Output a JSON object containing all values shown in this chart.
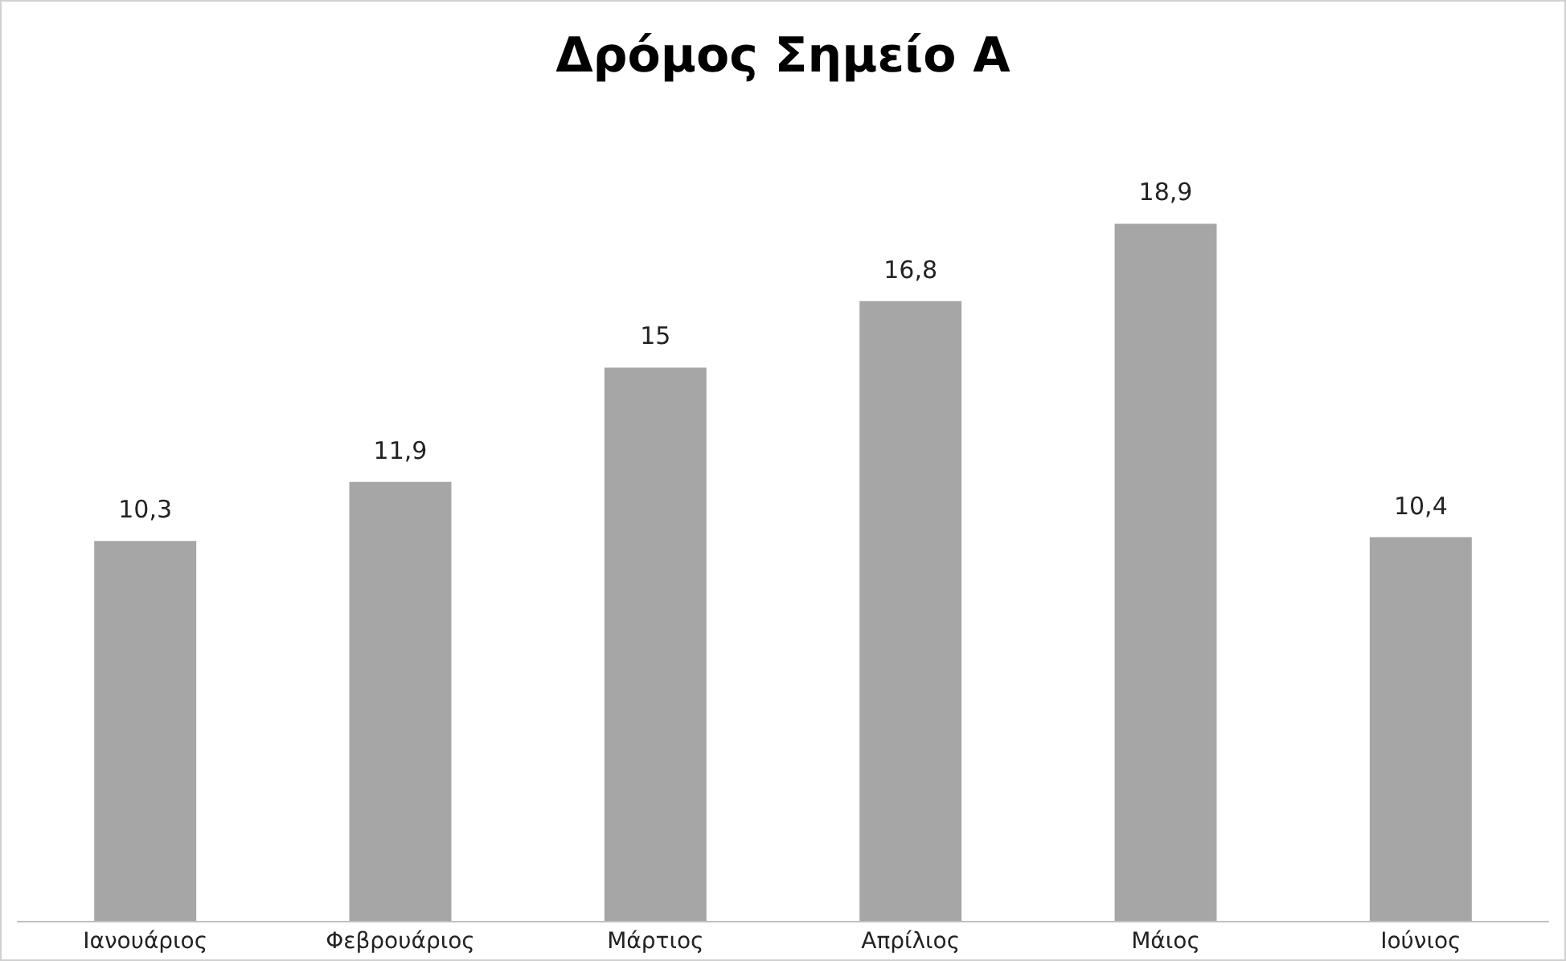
{
  "chart_data": {
    "type": "bar",
    "title": "Δρόμος Σημείο Α",
    "categories": [
      "Ιανουάριος",
      "Φεβρουάριος",
      "Μάρτιος",
      "Απρίλιος",
      "Μάιος",
      "Ιούνιος"
    ],
    "values": [
      10.3,
      11.9,
      15,
      16.8,
      18.9,
      10.4
    ],
    "value_labels": [
      "10,3",
      "11,9",
      "15",
      "16,8",
      "18,9",
      "10,4"
    ],
    "color": "#a6a6a6"
  }
}
